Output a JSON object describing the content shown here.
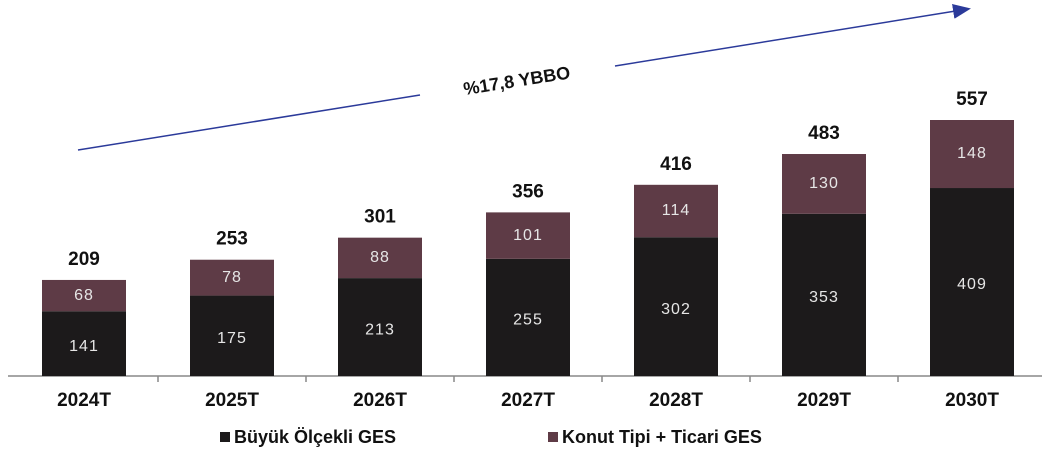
{
  "chart_data": {
    "type": "stacked_bar",
    "annotation": "%17,8 YBBO",
    "categories": [
      "2024T",
      "2025T",
      "2026T",
      "2027T",
      "2028T",
      "2029T",
      "2030T"
    ],
    "series": [
      {
        "name": "Büyük Ölçekli GES",
        "color": "#1c1a1b",
        "values": [
          141,
          175,
          213,
          255,
          302,
          353,
          409
        ]
      },
      {
        "name": "Konut Tipi + Ticari GES",
        "color": "#5e3b46",
        "values": [
          68,
          78,
          88,
          101,
          114,
          130,
          148
        ]
      }
    ],
    "total_labels": [
      209,
      253,
      301,
      356,
      416,
      483,
      557
    ],
    "legend": "bottom"
  }
}
